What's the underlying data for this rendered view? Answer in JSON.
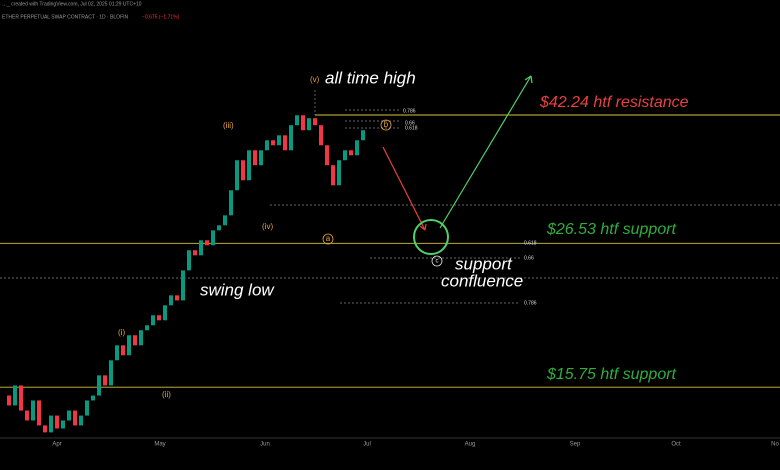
{
  "header": {
    "credit": "…_ created with TradingView.com, Jul 02, 2025 01:29 UTC+10",
    "symbol": "ETHER PERPETUAL SWAP CONTRACT · 1D · BLOFIN",
    "change": "−0.675 (−1.71%)"
  },
  "chart_data": {
    "type": "candlestick",
    "log_scale": true,
    "ylim": [
      13.1,
      61.8
    ],
    "up_color": "#089981",
    "down_color": "#f23645",
    "values": [
      15.28,
      14.74,
      15.85,
      14.47,
      13.96,
      15.01,
      13.71,
      13.37,
      14.21,
      13.56,
      13.96,
      14.47,
      13.71,
      14.21,
      15.01,
      15.28,
      16.44,
      15.85,
      17.36,
      18.33,
      17.68,
      19.01,
      18.33,
      19.36,
      19.71,
      20.44,
      20.07,
      21.19,
      21.97,
      21.57,
      24.05,
      25.87,
      25.4,
      26.82,
      26.34,
      27.81,
      28.32,
      29.36,
      32.15,
      35.85,
      33.34,
      37.17,
      35.21,
      37.17,
      38.54,
      37.85,
      39.24,
      37.17,
      40.7,
      42.2,
      39.97,
      41.75,
      40.7,
      37.85,
      35.21,
      32.74,
      35.85,
      37.17,
      36.5,
      38.54,
      39.97
    ],
    "levels": [
      {
        "value": 42.24,
        "label": "$42.24 htf resistance",
        "color": "#e8413e"
      },
      {
        "value": 26.53,
        "label": "$26.53 htf support",
        "color": "#2fae3a"
      },
      {
        "value": 15.75,
        "label": "$15.75 htf support",
        "color": "#2fae3a"
      }
    ],
    "x_labels": [
      "Apr",
      "May",
      "Jun",
      "Jul",
      "Aug",
      "Sep",
      "Oct",
      "No"
    ],
    "annotations": {
      "ath": "all time high",
      "v": "(v)",
      "iii": "(iii)",
      "iv": "(iv)",
      "i": "(i)",
      "ii": "(ii)",
      "a": "a",
      "b": "b",
      "c": "c",
      "swing": "swing low",
      "conf1": "support",
      "conf2": "confluence"
    },
    "fib_top": [
      0.786,
      0.66,
      0.618
    ],
    "fib_bottom": [
      0.618,
      0.66,
      0.786
    ]
  }
}
